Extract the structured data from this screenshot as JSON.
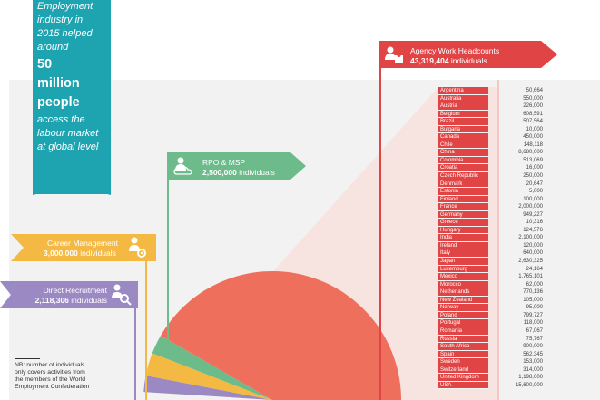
{
  "chart_data": {
    "type": "pie",
    "total_label": "50 million people",
    "series": [
      {
        "name": "Direct Recruitment",
        "value": "2,118,306",
        "unit": "individuals",
        "color": "#9b89c4"
      },
      {
        "name": "Career Management",
        "value": "3,000,000",
        "unit": "individuals",
        "color": "#f4b942"
      },
      {
        "name": "RPO & MSP",
        "value": "2,500,000",
        "unit": "individuals",
        "color": "#6dbb8b"
      },
      {
        "name": "Agency Work Headcounts",
        "value": "43,319,404",
        "unit": "individuals",
        "color": "#ee6f5c"
      }
    ],
    "table": {
      "title": "Agency Work Headcounts",
      "rows": [
        {
          "country": "Argentina",
          "value": "50,664"
        },
        {
          "country": "Australia",
          "value": "550,000"
        },
        {
          "country": "Austria",
          "value": "226,000"
        },
        {
          "country": "Belgium",
          "value": "608,591"
        },
        {
          "country": "Brazil",
          "value": "507,564"
        },
        {
          "country": "Bulgaria",
          "value": "10,000"
        },
        {
          "country": "Canada",
          "value": "450,000"
        },
        {
          "country": "Chile",
          "value": "148,118"
        },
        {
          "country": "China",
          "value": "8,680,000"
        },
        {
          "country": "Colombia",
          "value": "513,069"
        },
        {
          "country": "Croatia",
          "value": "16,000"
        },
        {
          "country": "Czech Republic",
          "value": "250,000"
        },
        {
          "country": "Denmark",
          "value": "20,647"
        },
        {
          "country": "Estonia",
          "value": "5,000"
        },
        {
          "country": "Finland",
          "value": "100,000"
        },
        {
          "country": "France",
          "value": "2,000,000"
        },
        {
          "country": "Germany",
          "value": "949,227"
        },
        {
          "country": "Greece",
          "value": "10,316"
        },
        {
          "country": "Hungary",
          "value": "124,576"
        },
        {
          "country": "India",
          "value": "2,100,000"
        },
        {
          "country": "Ireland",
          "value": "120,000"
        },
        {
          "country": "Italy",
          "value": "640,000"
        },
        {
          "country": "Japan",
          "value": "2,630,325"
        },
        {
          "country": "Luxemburg",
          "value": "24,164"
        },
        {
          "country": "Mexico",
          "value": "1,765,101"
        },
        {
          "country": "Morocco",
          "value": "62,000"
        },
        {
          "country": "Netherlands",
          "value": "770,136"
        },
        {
          "country": "New Zealand",
          "value": "105,000"
        },
        {
          "country": "Norway",
          "value": "95,000"
        },
        {
          "country": "Poland",
          "value": "799,727"
        },
        {
          "country": "Portugal",
          "value": "118,000"
        },
        {
          "country": "Romania",
          "value": "67,067"
        },
        {
          "country": "Russia",
          "value": "75,767"
        },
        {
          "country": "South Africa",
          "value": "900,000"
        },
        {
          "country": "Spain",
          "value": "562,345"
        },
        {
          "country": "Sweden",
          "value": "153,000"
        },
        {
          "country": "Switzerland",
          "value": "314,000"
        },
        {
          "country": "United Kingdom",
          "value": "1,198,000"
        },
        {
          "country": "USA",
          "value": "15,600,000"
        }
      ]
    }
  },
  "intro": {
    "line1": "Employment",
    "line2": "industry in",
    "line3": "2015 helped",
    "line4": "around",
    "big1": "50",
    "big2": "million",
    "big3": "people",
    "line5": "access the",
    "line6": "labour market",
    "line7": "at global level"
  },
  "callouts": {
    "agency": {
      "name": "Agency Work Headcounts",
      "value": "43,319,404",
      "unit": "individuals",
      "icon": "puzzle-person-icon"
    },
    "rpo": {
      "name": "RPO & MSP",
      "value": "2,500,000",
      "unit": "individuals",
      "icon": "cloud-person-icon"
    },
    "career": {
      "name": "Career Management",
      "value": "3,000,000",
      "unit": "individuals",
      "icon": "person-gear-icon"
    },
    "direct": {
      "name": "Direct Recruitment",
      "value": "2,118,306",
      "unit": "individuals",
      "icon": "person-search-icon"
    }
  },
  "note": {
    "line1": "NB: number of individuals",
    "line2": "only covers activities from",
    "line3": "the members of the World",
    "line4": "Employment Confederation"
  }
}
